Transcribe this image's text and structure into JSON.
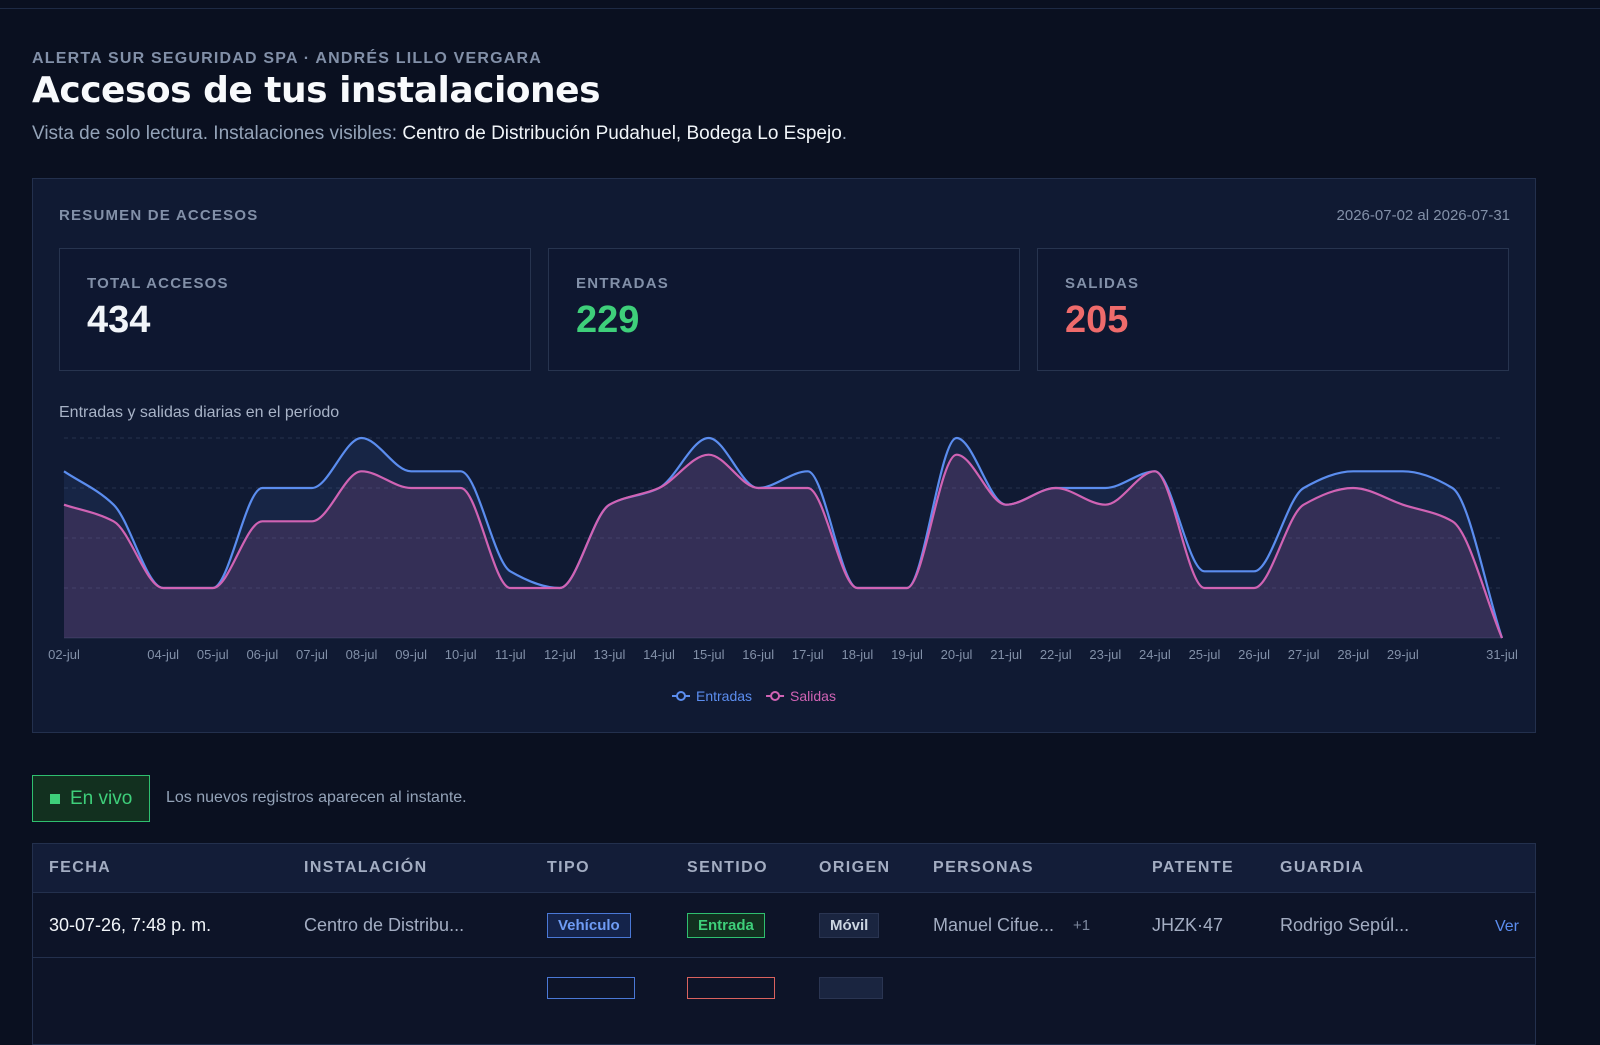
{
  "header": {
    "eyebrow": "ALERTA SUR SEGURIDAD SPA · ANDRÉS LILLO VERGARA",
    "title": "Accesos de tus instalaciones",
    "subtitle_prefix": "Vista de solo lectura. Instalaciones visibles:",
    "subtitle_highlight": "Centro de Distribución Pudahuel, Bodega Lo Espejo",
    "subtitle_suffix": "."
  },
  "summary": {
    "label": "RESUMEN DE ACCESOS",
    "period": "2026-07-02 al 2026-07-31",
    "cards": [
      {
        "label": "TOTAL ACCESOS",
        "value": 434,
        "color": "#f1f5f9"
      },
      {
        "label": "ENTRADAS",
        "value": 229,
        "color": "#3ecf7a"
      },
      {
        "label": "SALIDAS",
        "value": 205,
        "color": "#ef6b6b"
      }
    ]
  },
  "chart_data": {
    "type": "area",
    "title": "Entradas y salidas diarias en el período",
    "categories": [
      "02-jul",
      null,
      "04-jul",
      "05-jul",
      "06-jul",
      "07-jul",
      "08-jul",
      "09-jul",
      "10-jul",
      "11-jul",
      "12-jul",
      "13-jul",
      "14-jul",
      "15-jul",
      "16-jul",
      "17-jul",
      "18-jul",
      "19-jul",
      "20-jul",
      "21-jul",
      "22-jul",
      "23-jul",
      "24-jul",
      "25-jul",
      "26-jul",
      "27-jul",
      "28-jul",
      "29-jul",
      null,
      "31-jul"
    ],
    "series": [
      {
        "name": "Entradas",
        "color": "#5b8def",
        "values": [
          10,
          8,
          3,
          3,
          9,
          9,
          12,
          10,
          10,
          4,
          3,
          8,
          9,
          12,
          9,
          10,
          3,
          3,
          12,
          8,
          9,
          9,
          10,
          4,
          4,
          9,
          10,
          10,
          9,
          0
        ]
      },
      {
        "name": "Salidas",
        "color": "#d063b4",
        "values": [
          8,
          7,
          3,
          3,
          7,
          7,
          10,
          9,
          9,
          3,
          3,
          8,
          9,
          11,
          9,
          9,
          3,
          3,
          11,
          8,
          9,
          8,
          10,
          3,
          3,
          8,
          9,
          8,
          7,
          0
        ]
      }
    ],
    "ylim": [
      0,
      12
    ],
    "ygrid": [
      3,
      6,
      9,
      12
    ],
    "grid": true,
    "legend": "bottom"
  },
  "live": {
    "badge": "En vivo",
    "note": "Los nuevos registros aparecen al instante."
  },
  "table": {
    "columns": [
      "FECHA",
      "INSTALACIÓN",
      "TIPO",
      "SENTIDO",
      "ORIGEN",
      "PERSONAS",
      "PATENTE",
      "GUARDIA"
    ],
    "rows": [
      {
        "fecha": "30-07-26, 7:48 p. m.",
        "instalacion": "Centro de Distribu...",
        "tipo": "Vehículo",
        "sentido": "Entrada",
        "origen": "Móvil",
        "personas": "Manuel Cifue...",
        "personas_extra": "+1",
        "patente": "JHZK·47",
        "guardia": "Rodrigo Sepúl...",
        "accion": "Ver"
      }
    ]
  }
}
